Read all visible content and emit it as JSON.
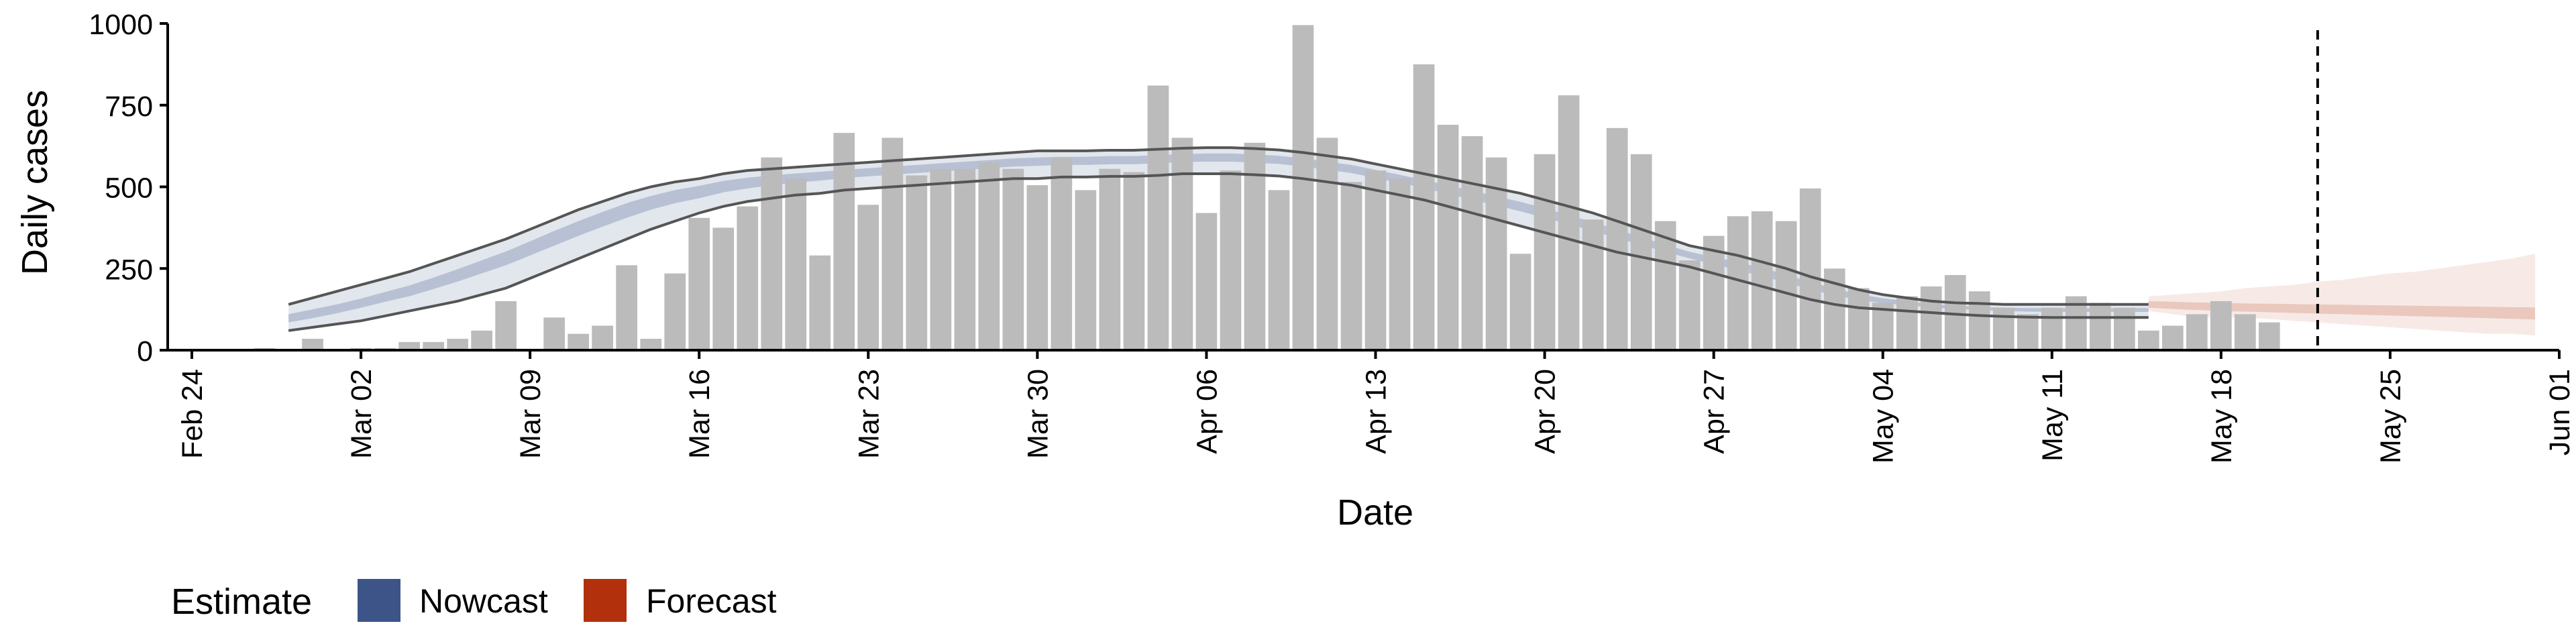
{
  "chart_data": {
    "type": "bar",
    "title": "",
    "xlabel": "Date",
    "ylabel": "Daily cases",
    "ylim": [
      0,
      1000
    ],
    "y_ticks": [
      0,
      250,
      500,
      750,
      1000
    ],
    "x_ticks": [
      {
        "date": "2020-02-24",
        "label": "Feb 24"
      },
      {
        "date": "2020-03-02",
        "label": "Mar 02"
      },
      {
        "date": "2020-03-09",
        "label": "Mar 09"
      },
      {
        "date": "2020-03-16",
        "label": "Mar 16"
      },
      {
        "date": "2020-03-23",
        "label": "Mar 23"
      },
      {
        "date": "2020-03-30",
        "label": "Mar 30"
      },
      {
        "date": "2020-04-06",
        "label": "Apr 06"
      },
      {
        "date": "2020-04-13",
        "label": "Apr 13"
      },
      {
        "date": "2020-04-20",
        "label": "Apr 20"
      },
      {
        "date": "2020-04-27",
        "label": "Apr 27"
      },
      {
        "date": "2020-05-04",
        "label": "May 04"
      },
      {
        "date": "2020-05-11",
        "label": "May 11"
      },
      {
        "date": "2020-05-18",
        "label": "May 18"
      },
      {
        "date": "2020-05-25",
        "label": "May 25"
      },
      {
        "date": "2020-06-01",
        "label": "Jun 01"
      }
    ],
    "xlim": [
      "2020-02-23",
      "2020-06-01"
    ],
    "bars": {
      "color": "#bbbbbb",
      "start_date": "2020-02-27",
      "values": [
        5,
        0,
        35,
        0,
        5,
        5,
        25,
        25,
        35,
        60,
        150,
        0,
        100,
        50,
        75,
        260,
        35,
        235,
        405,
        375,
        440,
        590,
        525,
        290,
        665,
        445,
        650,
        535,
        555,
        555,
        575,
        555,
        505,
        590,
        490,
        555,
        545,
        810,
        650,
        420,
        550,
        635,
        490,
        995,
        650,
        515,
        550,
        525,
        875,
        690,
        655,
        590,
        295,
        600,
        780,
        400,
        680,
        600,
        395,
        275,
        350,
        410,
        425,
        395,
        495,
        250,
        190,
        145,
        165,
        195,
        230,
        180,
        130,
        110,
        130,
        165,
        145,
        130,
        60,
        75,
        110,
        150,
        110,
        85
      ]
    },
    "nowcast": {
      "name": "Nowcast",
      "color": "#3c5488",
      "start_date": "2020-02-28",
      "upper": [
        140,
        160,
        180,
        200,
        220,
        240,
        265,
        290,
        315,
        340,
        370,
        400,
        430,
        455,
        480,
        500,
        515,
        525,
        540,
        550,
        555,
        560,
        565,
        570,
        575,
        580,
        585,
        590,
        595,
        600,
        605,
        610,
        610,
        610,
        612,
        612,
        615,
        618,
        620,
        620,
        617,
        613,
        605,
        595,
        585,
        570,
        555,
        540,
        525,
        510,
        495,
        480,
        460,
        440,
        420,
        395,
        370,
        345,
        320,
        305,
        290,
        270,
        250,
        225,
        205,
        185,
        170,
        160,
        150,
        145,
        143,
        140,
        140,
        140,
        140,
        140,
        140,
        140
      ],
      "lower": [
        60,
        70,
        80,
        90,
        105,
        120,
        135,
        150,
        170,
        190,
        220,
        250,
        280,
        310,
        340,
        370,
        395,
        420,
        440,
        455,
        465,
        475,
        480,
        490,
        495,
        500,
        505,
        510,
        515,
        520,
        525,
        525,
        530,
        530,
        532,
        532,
        535,
        540,
        540,
        540,
        537,
        533,
        525,
        515,
        505,
        490,
        475,
        460,
        440,
        420,
        400,
        380,
        360,
        340,
        320,
        300,
        285,
        270,
        255,
        235,
        215,
        195,
        175,
        155,
        140,
        130,
        125,
        120,
        115,
        110,
        106,
        103,
        101,
        100,
        100,
        100,
        100,
        100
      ],
      "inner_upper": [
        110,
        125,
        140,
        158,
        178,
        198,
        222,
        248,
        275,
        302,
        333,
        365,
        395,
        423,
        450,
        472,
        490,
        503,
        518,
        528,
        535,
        541,
        546,
        552,
        557,
        562,
        567,
        572,
        577,
        582,
        587,
        590,
        592,
        592,
        594,
        594,
        597,
        600,
        602,
        602,
        599,
        595,
        587,
        577,
        567,
        552,
        537,
        521,
        505,
        488,
        471,
        454,
        434,
        413,
        392,
        369,
        346,
        323,
        301,
        285,
        270,
        251,
        232,
        208,
        189,
        171,
        159,
        150,
        141,
        136,
        133,
        130,
        129,
        129,
        129,
        129,
        129,
        129
      ],
      "inner_lower": [
        85,
        98,
        113,
        130,
        148,
        165,
        187,
        210,
        235,
        260,
        290,
        320,
        350,
        378,
        405,
        430,
        450,
        465,
        483,
        495,
        505,
        513,
        519,
        527,
        532,
        537,
        542,
        547,
        552,
        557,
        562,
        564,
        567,
        567,
        569,
        569,
        572,
        576,
        577,
        577,
        574,
        570,
        562,
        552,
        542,
        527,
        512,
        497,
        478,
        460,
        443,
        425,
        405,
        385,
        365,
        343,
        322,
        301,
        281,
        263,
        245,
        226,
        207,
        185,
        168,
        153,
        144,
        137,
        131,
        126,
        123,
        120,
        118,
        117,
        117,
        117,
        117,
        117
      ]
    },
    "forecast": {
      "name": "Forecast",
      "color": "#b2300b",
      "start_date": "2020-05-15",
      "upper": [
        165,
        170,
        175,
        180,
        190,
        195,
        200,
        210,
        215,
        225,
        235,
        240,
        250,
        260,
        270,
        280,
        295
      ],
      "lower": [
        120,
        110,
        100,
        100,
        100,
        95,
        90,
        85,
        80,
        75,
        70,
        65,
        60,
        55,
        50,
        50,
        45
      ],
      "inner_upper": [
        150,
        148,
        146,
        145,
        143,
        142,
        141,
        140,
        139,
        138,
        137,
        136,
        135,
        134,
        133,
        132,
        131
      ],
      "inner_lower": [
        130,
        126,
        123,
        120,
        118,
        116,
        114,
        112,
        110,
        108,
        106,
        104,
        102,
        100,
        98,
        96,
        94
      ]
    },
    "vline_date": "2020-05-22",
    "legend": {
      "title": "Estimate",
      "position": "bottom-left",
      "items": [
        {
          "label": "Nowcast",
          "color": "#3c5488"
        },
        {
          "label": "Forecast",
          "color": "#b2300b"
        }
      ]
    },
    "grid": false
  }
}
